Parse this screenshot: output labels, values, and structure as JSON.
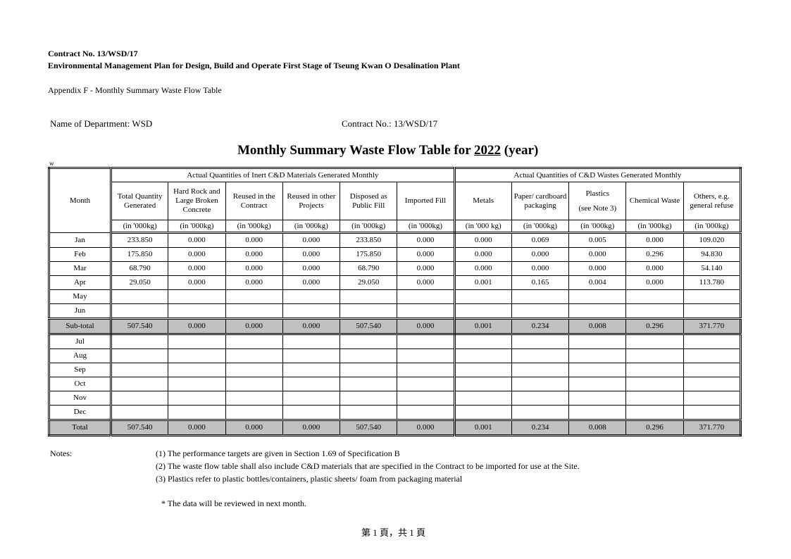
{
  "header": {
    "contract_line": "Contract No. 13/WSD/17",
    "plan_line": "Environmental Management Plan for Design, Build and Operate First Stage of Tseung Kwan O Desalination Plant",
    "appendix": "Appendix F - Monthly Summary Waste Flow Table",
    "department": "Name of Department: WSD",
    "contract_no": "Contract No.:  13/WSD/17",
    "title_prefix": "Monthly Summary Waste Flow Table for ",
    "year": "2022",
    "title_suffix": " (year)",
    "stray_mark": "w"
  },
  "table": {
    "month_header": "Month",
    "group_inert": "Actual Quantities of Inert C&D Materials Generated Monthly",
    "group_waste": "Actual Quantities of C&D Wastes Generated Monthly",
    "columns": [
      {
        "label": "Total Quantity Generated",
        "unit": "(in '000kg)"
      },
      {
        "label": "Hard Rock and Large Broken Concrete",
        "unit": "(in '000kg)"
      },
      {
        "label": "Reused in the Contract",
        "unit": "(in '000kg)"
      },
      {
        "label": "Reused in other Projects",
        "unit": "(in '000kg)"
      },
      {
        "label": "Disposed as Public Fill",
        "unit": "(in '000kg)"
      },
      {
        "label": "Imported Fill",
        "unit": "(in '000kg)"
      },
      {
        "label": "Metals",
        "unit": "(in '000 kg)"
      },
      {
        "label": "Paper/ cardboard packaging",
        "unit": "(in '000kg)"
      },
      {
        "label": "Plastics",
        "label2": "(see Note 3)",
        "unit": "(in '000kg)"
      },
      {
        "label": "Chemical Waste",
        "unit": "(in '000kg)"
      },
      {
        "label": "Others, e.g. general refuse",
        "unit": "(in '000kg)"
      }
    ],
    "rows": [
      {
        "month": "Jan",
        "values": [
          "233.850",
          "0.000",
          "0.000",
          "0.000",
          "233.850",
          "0.000",
          "0.000",
          "0.069",
          "0.005",
          "0.000",
          "109.020"
        ]
      },
      {
        "month": "Feb",
        "values": [
          "175.850",
          "0.000",
          "0.000",
          "0.000",
          "175.850",
          "0.000",
          "0.000",
          "0.000",
          "0.000",
          "0.296",
          "94.830"
        ]
      },
      {
        "month": "Mar",
        "values": [
          "68.790",
          "0.000",
          "0.000",
          "0.000",
          "68.790",
          "0.000",
          "0.000",
          "0.000",
          "0.000",
          "0.000",
          "54.140"
        ]
      },
      {
        "month": "Apr",
        "values": [
          "29.050",
          "0.000",
          "0.000",
          "0.000",
          "29.050",
          "0.000",
          "0.001",
          "0.165",
          "0.004",
          "0.000",
          "113.780"
        ]
      },
      {
        "month": "May",
        "values": [
          "",
          "",
          "",
          "",
          "",
          "",
          "",
          "",
          "",
          "",
          ""
        ]
      },
      {
        "month": "Jun",
        "values": [
          "",
          "",
          "",
          "",
          "",
          "",
          "",
          "",
          "",
          "",
          ""
        ]
      },
      {
        "month": "Sub-total",
        "type": "sub",
        "values": [
          "507.540",
          "0.000",
          "0.000",
          "0.000",
          "507.540",
          "0.000",
          "0.001",
          "0.234",
          "0.008",
          "0.296",
          "371.770"
        ]
      },
      {
        "month": "Jul",
        "values": [
          "",
          "",
          "",
          "",
          "",
          "",
          "",
          "",
          "",
          "",
          ""
        ]
      },
      {
        "month": "Aug",
        "values": [
          "",
          "",
          "",
          "",
          "",
          "",
          "",
          "",
          "",
          "",
          ""
        ]
      },
      {
        "month": "Sep",
        "values": [
          "",
          "",
          "",
          "",
          "",
          "",
          "",
          "",
          "",
          "",
          ""
        ]
      },
      {
        "month": "Oct",
        "values": [
          "",
          "",
          "",
          "",
          "",
          "",
          "",
          "",
          "",
          "",
          ""
        ]
      },
      {
        "month": "Nov",
        "values": [
          "",
          "",
          "",
          "",
          "",
          "",
          "",
          "",
          "",
          "",
          ""
        ]
      },
      {
        "month": "Dec",
        "values": [
          "",
          "",
          "",
          "",
          "",
          "",
          "",
          "",
          "",
          "",
          ""
        ]
      },
      {
        "month": "Total",
        "type": "tot",
        "values": [
          "507.540",
          "0.000",
          "0.000",
          "0.000",
          "507.540",
          "0.000",
          "0.001",
          "0.234",
          "0.008",
          "0.296",
          "371.770"
        ]
      }
    ]
  },
  "notes": {
    "label": "Notes:",
    "items": [
      "(1) The performance targets are given in Section 1.69 of Specification B",
      "(2) The waste flow table shall also include C&D materials that are specified in the Contract to be imported for use at the Site.",
      "(3) Plastics refer to plastic bottles/containers, plastic sheets/ foam from packaging material"
    ],
    "review": "*  The data will be reviewed in next month."
  },
  "footer": {
    "page": "第 1 頁，共 1 頁"
  }
}
